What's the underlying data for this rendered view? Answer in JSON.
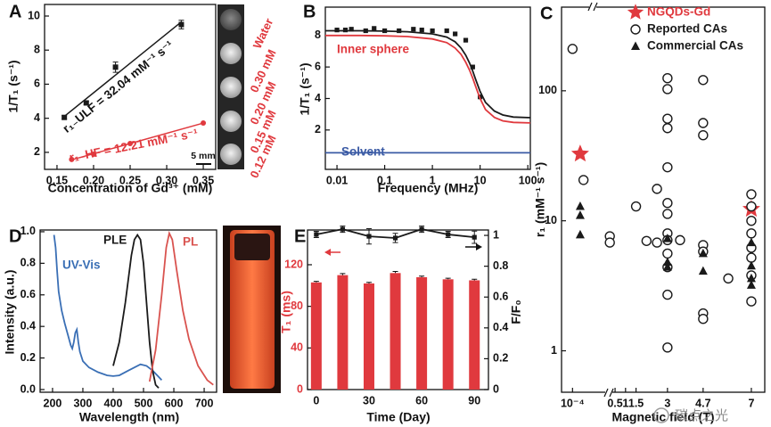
{
  "chart_data": [
    {
      "type": "scatter",
      "panel": "A",
      "xlabel": "Concentration of Gd³⁺ (mM)",
      "ylabel": "1/T₁ (s⁻¹)",
      "xlim": [
        0.133,
        0.367
      ],
      "ylim": [
        1.0,
        10.68
      ],
      "xticks": [
        0.15,
        {
          "value": 0.2,
          "label": "0.20"
        },
        0.25,
        {
          "value": 0.3,
          "label": "0.30"
        },
        0.35
      ],
      "yticks": [
        2,
        4,
        6,
        8,
        10
      ],
      "series": [
        {
          "color": "#1a1a1a",
          "marker": "square",
          "fit": true,
          "x": [
            0.16,
            0.19,
            0.23,
            0.32
          ],
          "values": [
            4.05,
            4.9,
            7.0,
            9.5
          ],
          "errors": [
            0.1,
            0.1,
            0.3,
            0.25
          ]
        },
        {
          "color": "#e0393e",
          "marker": "circle",
          "fit": true,
          "x": [
            0.17,
            0.2,
            0.25,
            0.35
          ],
          "values": [
            1.58,
            1.89,
            2.52,
            3.72
          ]
        }
      ],
      "annotations": [
        "r₁₋ULF = 32.04 mM⁻¹ s⁻¹",
        "r₁₋HF = 12.21 mM⁻¹ s⁻¹"
      ],
      "image_labels": [
        "Water",
        "0.30 mM",
        "0.20 mM",
        "0.15 mM",
        "0.12 mM"
      ],
      "scale_bar": "5 mm"
    },
    {
      "type": "line",
      "panel": "B",
      "xlabel": "Frequency (MHz)",
      "ylabel": "1/T₁ (s⁻¹)",
      "xlog": true,
      "xlim": [
        0.0057,
        113
      ],
      "ylim": [
        -0.5,
        9.8
      ],
      "xticks": [
        0.01,
        0.1,
        1,
        10,
        100
      ],
      "yticks": [
        2,
        4,
        6,
        8
      ],
      "legend": "inline",
      "x": [
        0.0057,
        0.01,
        0.03,
        0.1,
        0.3,
        1,
        2,
        3,
        4,
        5,
        6,
        7,
        8,
        10,
        13,
        20,
        30,
        50,
        113
      ],
      "series": [
        {
          "color": "#1a1a1a",
          "marker": "square",
          "line": false,
          "x": [
            0.01,
            0.015,
            0.02,
            0.04,
            0.06,
            0.1,
            0.2,
            0.4,
            0.6,
            1,
            2,
            3,
            5,
            7,
            10
          ],
          "values": [
            8.35,
            8.35,
            8.4,
            8.3,
            8.45,
            8.3,
            8.3,
            8.4,
            8.35,
            8.3,
            8.3,
            8.1,
            7.7,
            6.0,
            4.1
          ]
        },
        {
          "color": "#1a1a1a",
          "line": true,
          "values": [
            8.3,
            8.3,
            8.3,
            8.28,
            8.24,
            8.1,
            7.9,
            7.6,
            7.2,
            6.75,
            6.25,
            5.75,
            5.25,
            4.45,
            3.75,
            3.2,
            2.95,
            2.82,
            2.78
          ]
        },
        {
          "name": "Inner sphere",
          "color": "#e0393e",
          "line": true,
          "values": [
            8.0,
            8.0,
            8.0,
            7.98,
            7.93,
            7.78,
            7.55,
            7.2,
            6.8,
            6.3,
            5.8,
            5.3,
            4.8,
            4.0,
            3.3,
            2.8,
            2.58,
            2.48,
            2.45
          ]
        },
        {
          "name": "Solvent",
          "color": "#3b5ba5",
          "line": true,
          "values": [
            0.55,
            0.55,
            0.55,
            0.55,
            0.55,
            0.55,
            0.55,
            0.55,
            0.55,
            0.55,
            0.55,
            0.55,
            0.55,
            0.55,
            0.55,
            0.55,
            0.55,
            0.55,
            0.55
          ]
        }
      ]
    },
    {
      "type": "scatter",
      "panel": "C",
      "xlabel": "Magnetic field (T)",
      "ylabel": "r₁ (mM⁻¹ s⁻¹)",
      "ylog": true,
      "x_break": 0.2,
      "xlim": [
        1e-05,
        7.64
      ],
      "ylim": [
        0.48,
        440
      ],
      "xticks": [
        {
          "value": 0.0001,
          "label": "10⁻⁴"
        },
        0.5,
        1,
        1.5,
        3,
        4.7,
        7
      ],
      "yticks": [
        1,
        10,
        100
      ],
      "legend": "upper right",
      "series": [
        {
          "name": "NGQDs-Gd",
          "color": "#e0393e",
          "marker": "star",
          "x": [
            0.0005,
            7
          ],
          "values": [
            32.7,
            12.3
          ]
        },
        {
          "name": "Reported CAs",
          "color": "#1a1a1a",
          "marker": "open-circle",
          "x": [
            0.0001,
            0.001,
            0.25,
            0.25,
            1.5,
            2.5,
            2,
            2.5,
            3,
            3,
            3,
            3,
            3,
            3,
            3,
            3,
            3,
            3,
            3,
            3,
            3,
            3.6,
            4.7,
            4.7,
            4.7,
            4.7,
            4.7,
            4.7,
            4.7,
            5.9,
            7,
            7,
            7,
            7,
            7,
            7,
            7,
            7
          ],
          "values": [
            210,
            20.6,
            7.6,
            6.8,
            12.9,
            17.6,
            7.0,
            6.8,
            125,
            103,
            61,
            51.6,
            25.8,
            13.7,
            11.3,
            8.0,
            7.1,
            5.6,
            4.4,
            2.7,
            1.06,
            7.1,
            121,
            56.5,
            45.5,
            6.5,
            5.8,
            1.94,
            1.76,
            3.6,
            16,
            12.9,
            10,
            8.0,
            6.2,
            5.2,
            3.8,
            2.4
          ]
        },
        {
          "name": "Commercial CAs",
          "color": "#1a1a1a",
          "marker": "triangle",
          "x": [
            0.0005,
            0.0005,
            0.0005,
            3,
            3,
            3,
            4.7,
            4.7,
            7,
            7,
            7,
            7
          ],
          "values": [
            12.9,
            11.0,
            7.8,
            7.3,
            4.8,
            4.4,
            5.6,
            4.1,
            6.8,
            4.5,
            3.6,
            3.2
          ]
        }
      ]
    },
    {
      "type": "line",
      "panel": "D",
      "xlabel": "Wavelength (nm)",
      "ylabel": "Intensity (a.u.)",
      "legend": "inline",
      "xlim": [
        159,
        741
      ],
      "ylim": [
        -0.017,
        1.011
      ],
      "xticks": [
        200,
        300,
        400,
        500,
        600,
        700
      ],
      "yticks": [
        {
          "value": 0,
          "label": "0.0"
        },
        0.2,
        0.4,
        0.6,
        0.8,
        {
          "value": 1,
          "label": "1.0"
        }
      ],
      "series": [
        {
          "name": "UV-Vis",
          "color": "#3a6fb5",
          "line": true,
          "x": [
            205,
            210,
            215,
            220,
            230,
            240,
            250,
            260,
            265,
            270,
            275,
            280,
            285,
            290,
            300,
            320,
            350,
            380,
            400,
            420,
            450,
            470,
            490,
            510,
            530,
            550,
            560
          ],
          "values": [
            0.98,
            0.9,
            0.75,
            0.62,
            0.5,
            0.42,
            0.35,
            0.28,
            0.26,
            0.3,
            0.36,
            0.38,
            0.3,
            0.24,
            0.18,
            0.14,
            0.11,
            0.09,
            0.085,
            0.09,
            0.12,
            0.14,
            0.16,
            0.15,
            0.12,
            0.08,
            0.06
          ]
        },
        {
          "name": "PLE",
          "color": "#1a1a1a",
          "line": true,
          "x": [
            400,
            420,
            440,
            460,
            470,
            480,
            490,
            500,
            510,
            520,
            530,
            540,
            550
          ],
          "values": [
            0.15,
            0.3,
            0.55,
            0.85,
            0.95,
            0.98,
            0.95,
            0.8,
            0.55,
            0.3,
            0.12,
            0.03,
            0.01
          ]
        },
        {
          "name": "PL",
          "color": "#d9534f",
          "line": true,
          "x": [
            520,
            540,
            560,
            575,
            585,
            595,
            610,
            630,
            650,
            680,
            710,
            730
          ],
          "values": [
            0.05,
            0.25,
            0.6,
            0.9,
            0.99,
            0.95,
            0.75,
            0.5,
            0.32,
            0.15,
            0.06,
            0.03
          ]
        }
      ]
    },
    {
      "type": "bar",
      "panel": "E",
      "xlabel": "Time (Day)",
      "ylabel": "T₁ (ms)",
      "y2label": "F/F₀",
      "ylabel_color": "#e0393e",
      "xlim": [
        -5,
        98
      ],
      "ylim": [
        0,
        153.4
      ],
      "y2lim": [
        0,
        1.035
      ],
      "xticks": [
        0,
        30,
        60,
        90
      ],
      "yticks": [
        0,
        40,
        80,
        120
      ],
      "y2ticks": [
        0,
        0.2,
        0.4,
        0.6,
        0.8,
        1
      ],
      "x": [
        0,
        15,
        30,
        45,
        60,
        75,
        90
      ],
      "series": [
        {
          "color": "#e0393e",
          "values": [
            103,
            110,
            102,
            112,
            108,
            106,
            105
          ],
          "errors": [
            1,
            1.5,
            1,
            1.5,
            1,
            1,
            1
          ]
        },
        {
          "axis": "y2",
          "color": "#1a1a1a",
          "marker": "square",
          "line": true,
          "values": [
            1.006,
            1.04,
            0.994,
            0.983,
            1.04,
            1.006,
            0.988
          ],
          "errors": [
            0.02,
            0.02,
            0.05,
            0.03,
            0.02,
            0.02,
            0.04
          ]
        }
      ]
    }
  ],
  "watermark": "碳点之光"
}
